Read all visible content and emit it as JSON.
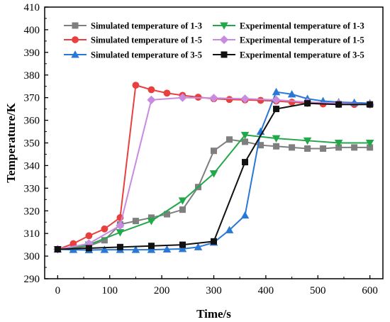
{
  "chart_data": {
    "type": "line",
    "xlabel": "Time/s",
    "ylabel": "Temperature/K",
    "xlim": [
      -25,
      625
    ],
    "ylim": [
      290,
      410
    ],
    "xticks": [
      0,
      100,
      200,
      300,
      400,
      500,
      600
    ],
    "yticks": [
      290,
      300,
      310,
      320,
      330,
      340,
      350,
      360,
      370,
      380,
      390,
      400,
      410
    ],
    "legend_position": "top",
    "grid": false,
    "series": [
      {
        "name": "Simulated temperature of 1-3",
        "color": "#7f7f7f",
        "marker": "square",
        "x": [
          0,
          30,
          60,
          90,
          120,
          150,
          180,
          210,
          240,
          270,
          300,
          330,
          360,
          390,
          420,
          450,
          480,
          510,
          540,
          570,
          600
        ],
        "y": [
          303,
          303.5,
          304.5,
          307,
          314,
          315.5,
          317,
          318.5,
          320.5,
          330.5,
          346.5,
          351.5,
          350.5,
          349,
          348.5,
          348,
          347.5,
          347.5,
          348,
          348,
          348
        ]
      },
      {
        "name": "Simulated temperature of 1-5",
        "color": "#e8403e",
        "marker": "circle",
        "x": [
          0,
          30,
          60,
          90,
          120,
          150,
          180,
          210,
          240,
          270,
          300,
          330,
          360,
          390,
          420,
          450,
          480,
          510,
          540,
          570,
          600
        ],
        "y": [
          303,
          305.5,
          309,
          312,
          317,
          375.5,
          373.5,
          372,
          371,
          370.2,
          369.5,
          369.2,
          369,
          368.8,
          368.5,
          368,
          367.5,
          367.2,
          367,
          367,
          367
        ]
      },
      {
        "name": "Simulated temperature of 3-5",
        "color": "#2a78d5",
        "marker": "triangle-up",
        "x": [
          0,
          30,
          60,
          90,
          120,
          150,
          180,
          210,
          240,
          270,
          300,
          330,
          360,
          390,
          420,
          450,
          480,
          510,
          540,
          570,
          600
        ],
        "y": [
          303,
          302.8,
          302.7,
          302.8,
          302.8,
          302.8,
          302.8,
          303,
          303.2,
          304,
          306,
          311.5,
          318,
          355,
          372.5,
          371.5,
          369.5,
          368.5,
          368,
          367.8,
          367.5
        ]
      },
      {
        "name": "Experimental temperature of 1-3",
        "color": "#22a84a",
        "marker": "triangle-down",
        "x": [
          0,
          60,
          120,
          180,
          240,
          300,
          360,
          420,
          480,
          540,
          600
        ],
        "y": [
          303,
          305,
          310.5,
          315.5,
          324.5,
          336.5,
          353.5,
          352,
          351,
          350,
          350
        ]
      },
      {
        "name": "Experimental temperature of 1-5",
        "color": "#c98be0",
        "marker": "diamond",
        "x": [
          0,
          60,
          120,
          180,
          240,
          300,
          360,
          420,
          480,
          540,
          600
        ],
        "y": [
          303,
          305.5,
          313.5,
          369,
          370,
          369.8,
          369.5,
          369,
          368,
          367.5,
          367
        ]
      },
      {
        "name": "Experimental temperature of 3-5",
        "color": "#111111",
        "marker": "square",
        "x": [
          0,
          60,
          120,
          180,
          240,
          300,
          360,
          420,
          480,
          540,
          600
        ],
        "y": [
          303,
          303.5,
          304,
          304.5,
          305,
          306.5,
          341.5,
          365,
          367.5,
          367,
          367
        ]
      }
    ]
  }
}
